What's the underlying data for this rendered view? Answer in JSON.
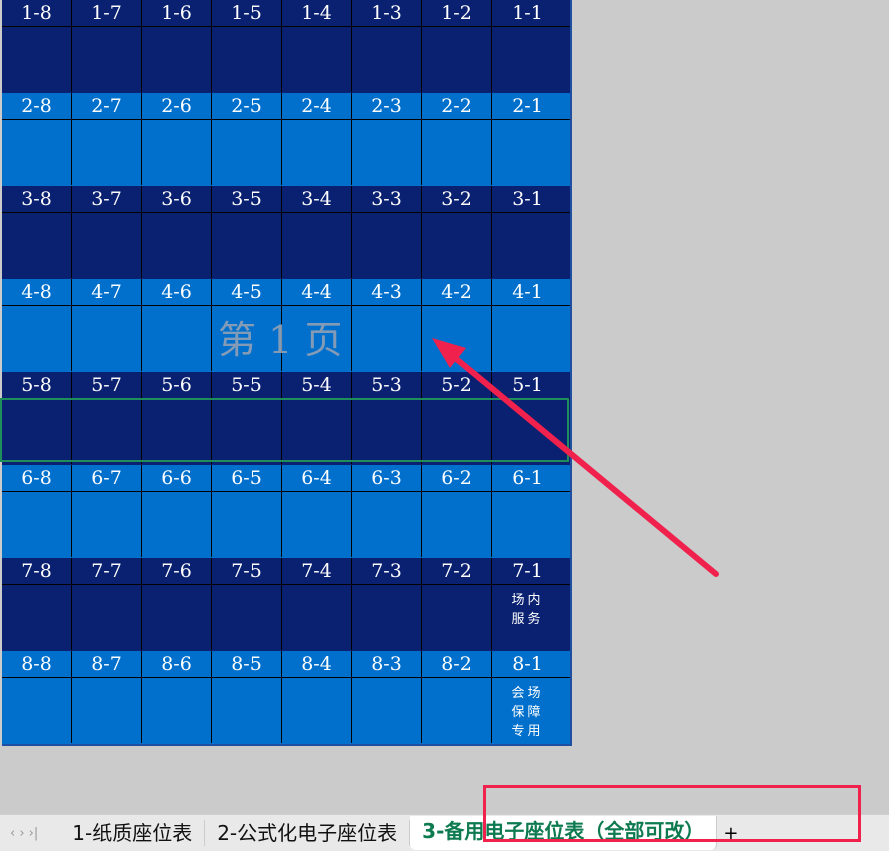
{
  "rows": [
    {
      "seats": [
        "1-8",
        "1-7",
        "1-6",
        "1-5",
        "1-4",
        "1-3",
        "1-2",
        "1-1"
      ],
      "note": "",
      "tone": "dark"
    },
    {
      "seats": [
        "2-8",
        "2-7",
        "2-6",
        "2-5",
        "2-4",
        "2-3",
        "2-2",
        "2-1"
      ],
      "note": "",
      "tone": "light"
    },
    {
      "seats": [
        "3-8",
        "3-7",
        "3-6",
        "3-5",
        "3-4",
        "3-3",
        "3-2",
        "3-1"
      ],
      "note": "",
      "tone": "dark"
    },
    {
      "seats": [
        "4-8",
        "4-7",
        "4-6",
        "4-5",
        "4-4",
        "4-3",
        "4-2",
        "4-1"
      ],
      "note": "",
      "tone": "light"
    },
    {
      "seats": [
        "5-8",
        "5-7",
        "5-6",
        "5-5",
        "5-4",
        "5-3",
        "5-2",
        "5-1"
      ],
      "note": "",
      "tone": "dark"
    },
    {
      "seats": [
        "6-8",
        "6-7",
        "6-6",
        "6-5",
        "6-4",
        "6-3",
        "6-2",
        "6-1"
      ],
      "note": "",
      "tone": "light"
    },
    {
      "seats": [
        "7-8",
        "7-7",
        "7-6",
        "7-5",
        "7-4",
        "7-3",
        "7-2",
        "7-1"
      ],
      "note": "场内\n服务",
      "tone": "dark"
    },
    {
      "seats": [
        "8-8",
        "8-7",
        "8-6",
        "8-5",
        "8-4",
        "8-3",
        "8-2",
        "8-1"
      ],
      "note": "会场\n保障\n专用",
      "tone": "light"
    }
  ],
  "watermark": "第 1 页",
  "colors": {
    "dark": "#0a2070",
    "light": "#0070cc",
    "selection": "#1e8f5a",
    "annotation": "#f0224d"
  },
  "tabs": {
    "nav": "‹ › ›|",
    "items": [
      {
        "label": "1-纸质座位表"
      },
      {
        "label": "2-公式化电子座位表"
      },
      {
        "label": "3-备用电子座位表（全部可改）",
        "active": true
      }
    ],
    "add": "+"
  }
}
